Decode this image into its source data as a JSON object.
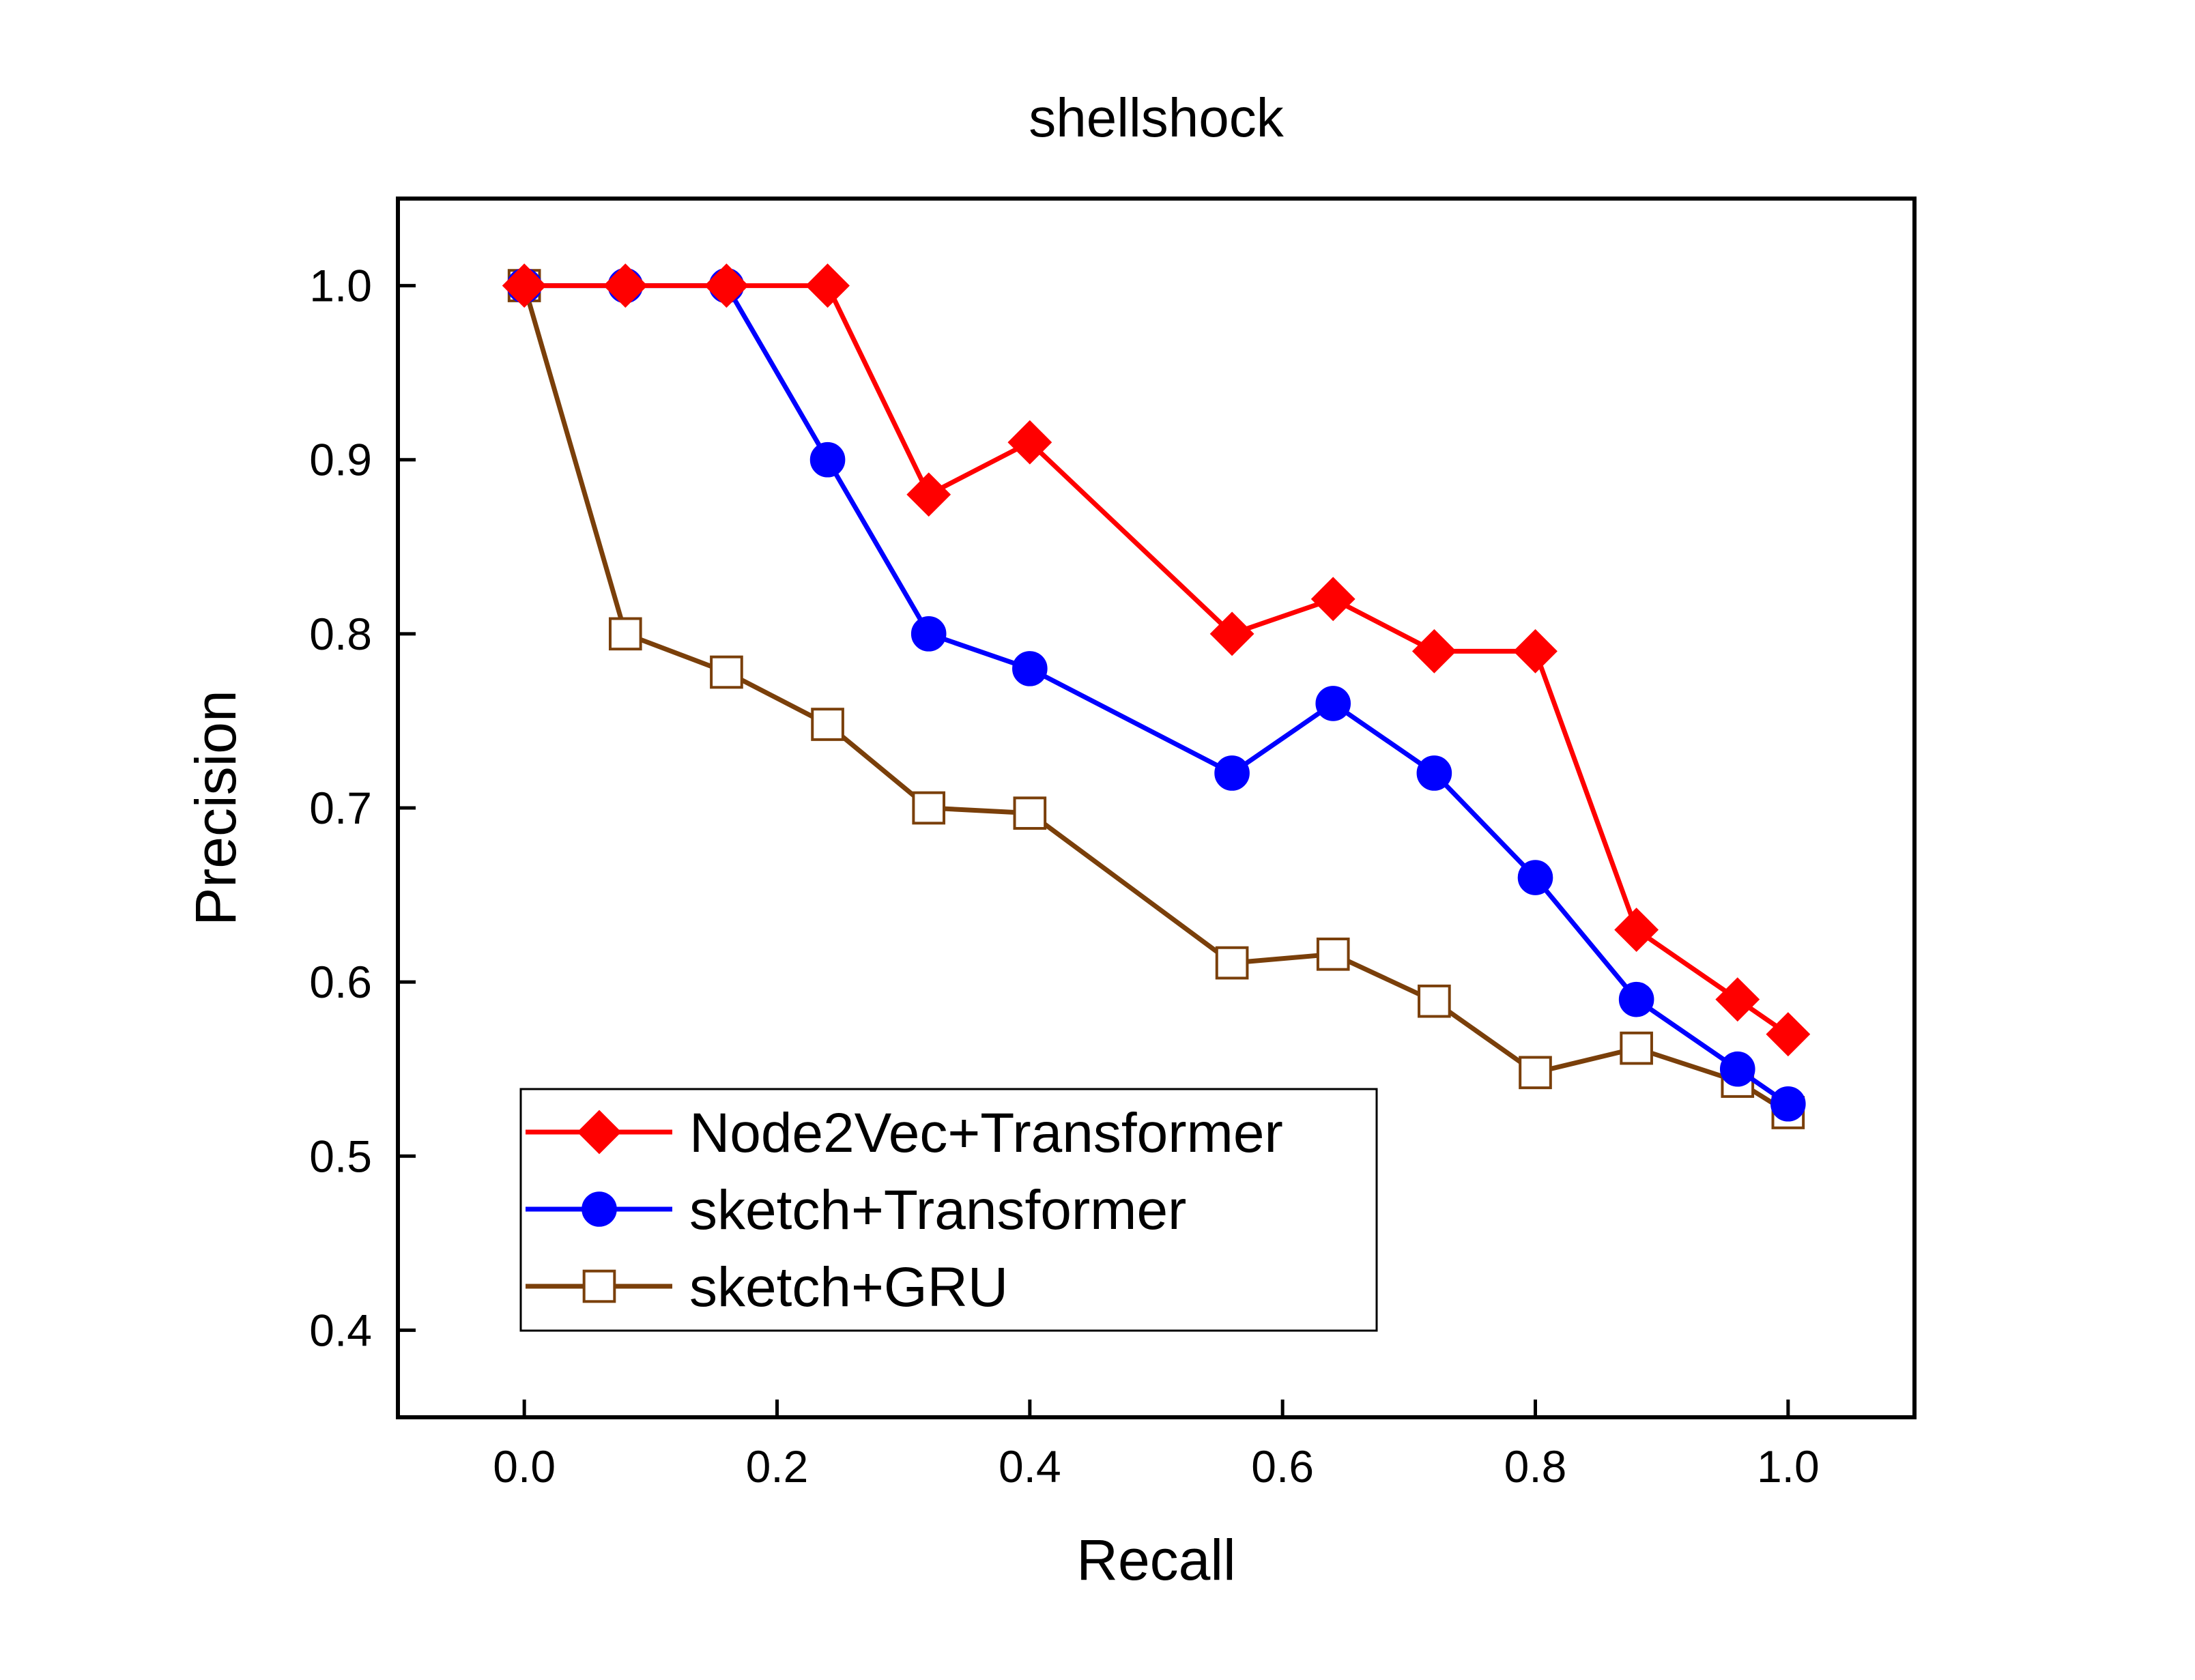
{
  "chart_data": {
    "type": "line",
    "title": "shellshock",
    "xlabel": "Recall",
    "ylabel": "Precision",
    "xlim": [
      -0.1,
      1.1
    ],
    "ylim": [
      0.35,
      1.05
    ],
    "xticks": [
      0.0,
      0.2,
      0.4,
      0.6,
      0.8,
      1.0
    ],
    "xtick_labels": [
      "0.0",
      "0.2",
      "0.4",
      "0.6",
      "0.8",
      "1.0"
    ],
    "yticks": [
      0.4,
      0.5,
      0.6,
      0.7,
      0.8,
      0.9,
      1.0
    ],
    "ytick_labels": [
      "0.4",
      "0.5",
      "0.6",
      "0.7",
      "0.8",
      "0.9",
      "1.0"
    ],
    "grid": false,
    "legend_position": "bottom-left",
    "series": [
      {
        "name": "Node2Vec+Transformer",
        "color": "#ff0000",
        "marker": "diamond-filled",
        "x": [
          0.0,
          0.08,
          0.16,
          0.24,
          0.32,
          0.4,
          0.56,
          0.64,
          0.72,
          0.8,
          0.88,
          0.96,
          1.0
        ],
        "y": [
          1.0,
          1.0,
          1.0,
          1.0,
          0.88,
          0.91,
          0.8,
          0.82,
          0.79,
          0.79,
          0.63,
          0.59,
          0.57
        ]
      },
      {
        "name": "sketch+Transformer",
        "color": "#0000ff",
        "marker": "circle-filled",
        "x": [
          0.0,
          0.08,
          0.16,
          0.24,
          0.32,
          0.4,
          0.56,
          0.64,
          0.72,
          0.8,
          0.88,
          0.96,
          1.0
        ],
        "y": [
          1.0,
          1.0,
          1.0,
          0.9,
          0.8,
          0.78,
          0.72,
          0.76,
          0.72,
          0.66,
          0.59,
          0.55,
          0.53
        ]
      },
      {
        "name": "sketch+GRU",
        "color": "#7a3f0a",
        "marker": "square-open",
        "x": [
          0.0,
          0.08,
          0.16,
          0.24,
          0.32,
          0.4,
          0.56,
          0.64,
          0.72,
          0.8,
          0.88,
          0.96,
          1.0
        ],
        "y": [
          1.0,
          0.8,
          0.778,
          0.748,
          0.7,
          0.697,
          0.611,
          0.616,
          0.589,
          0.548,
          0.562,
          0.543,
          0.525
        ]
      }
    ]
  }
}
